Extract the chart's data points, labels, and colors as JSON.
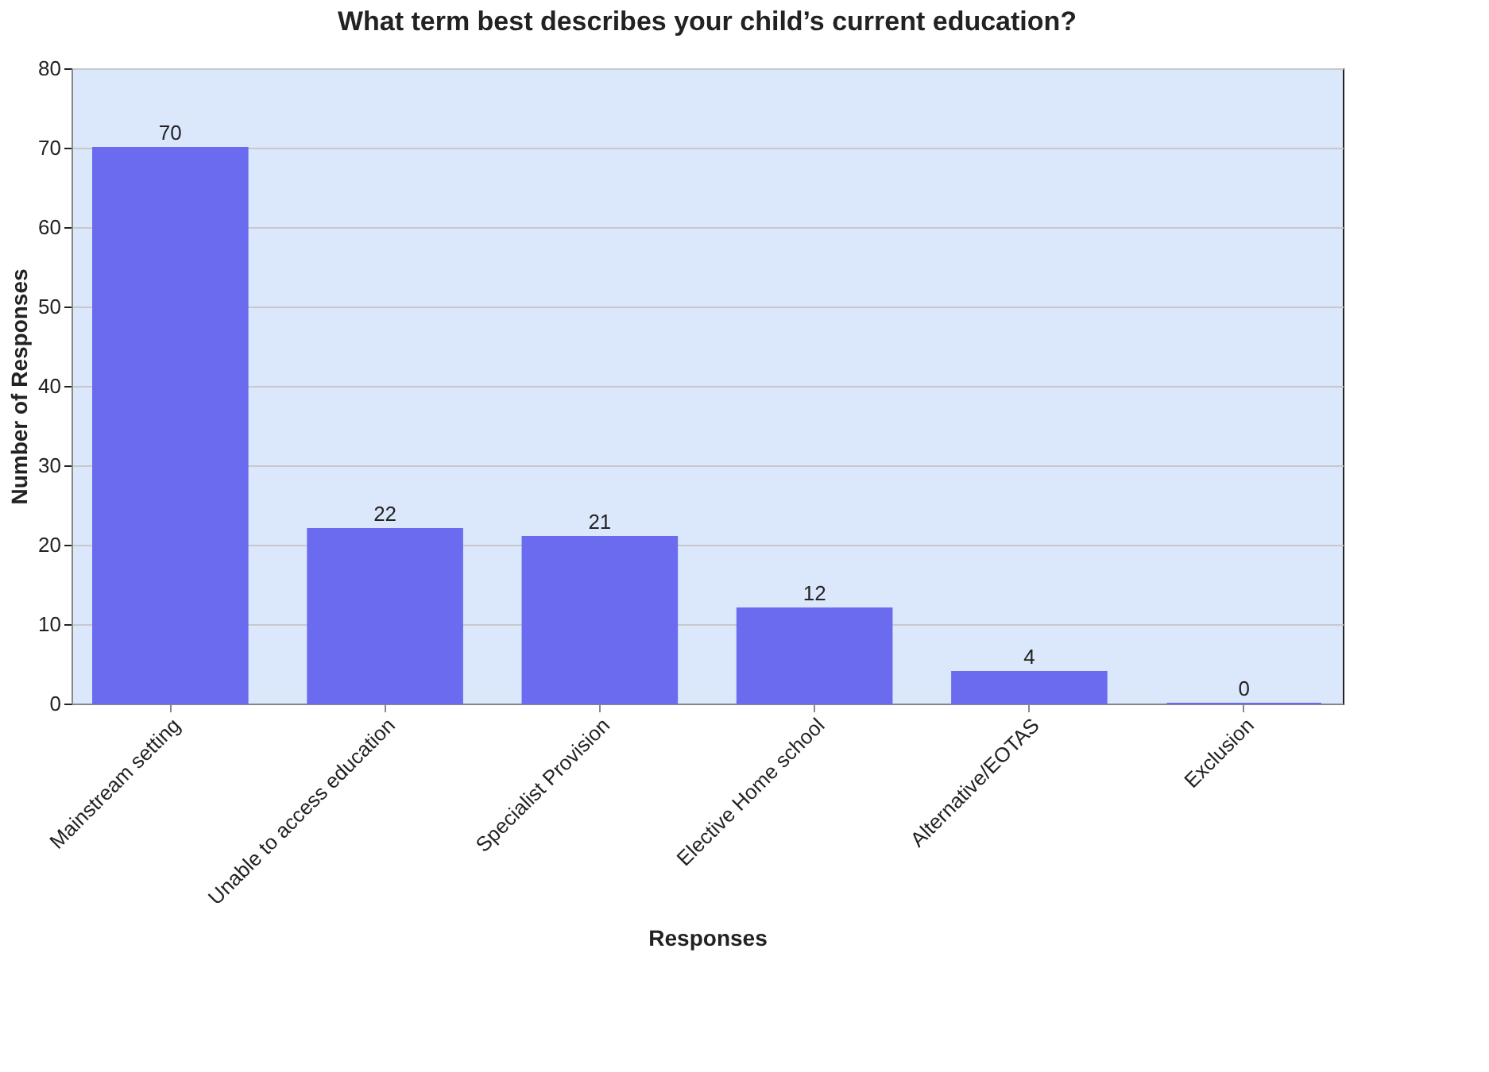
{
  "chart_data": {
    "type": "bar",
    "title": "What term best describes your child’s current education?",
    "xlabel": "Responses",
    "ylabel": "Number of Responses",
    "categories": [
      "Mainstream setting",
      "Unable to access education",
      "Specialist Provision",
      "Elective Home school",
      "Alternative/EOTAS",
      "Exclusion"
    ],
    "values": [
      70,
      22,
      21,
      12,
      4,
      0
    ],
    "color": "#6b6bef",
    "ylim": [
      0,
      80
    ],
    "yticks": [
      0,
      10,
      20,
      30,
      40,
      50,
      60,
      70,
      80
    ],
    "grid": "y",
    "data_labels": true
  }
}
